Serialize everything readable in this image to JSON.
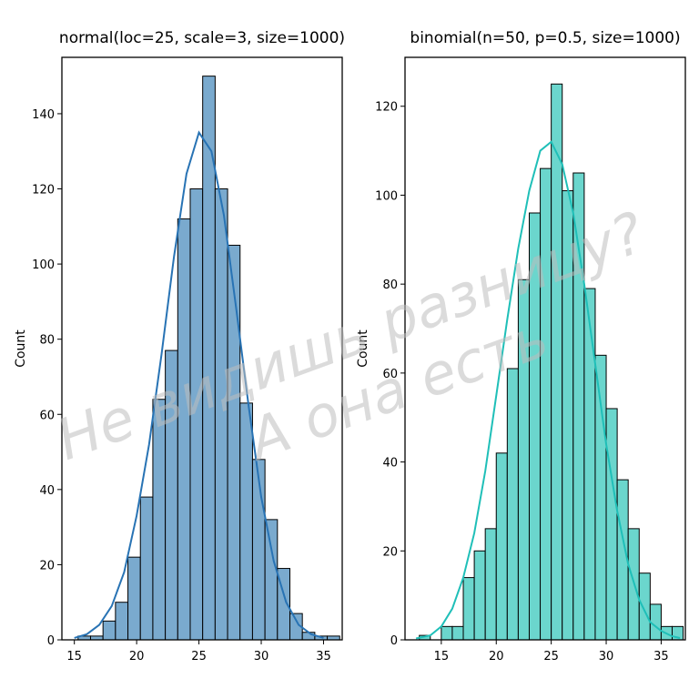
{
  "chart_data": [
    {
      "type": "bar",
      "title": "normal(loc=25, scale=3, size=1000)",
      "xlabel": "",
      "ylabel": "Count",
      "xlim": [
        14,
        36.5
      ],
      "ylim": [
        0,
        155
      ],
      "xticks": [
        15,
        20,
        25,
        30,
        35
      ],
      "yticks": [
        0,
        20,
        40,
        60,
        80,
        100,
        120,
        140
      ],
      "bin_edges": [
        15.3,
        16.3,
        17.3,
        18.3,
        19.3,
        20.3,
        21.3,
        22.3,
        23.3,
        24.3,
        25.3,
        26.3,
        27.3,
        28.3,
        29.3,
        30.3,
        31.3,
        32.3,
        33.3,
        34.3,
        35.3,
        36.3
      ],
      "values": [
        1,
        1,
        5,
        10,
        22,
        38,
        64,
        77,
        112,
        120,
        150,
        120,
        105,
        63,
        48,
        32,
        19,
        7,
        2,
        1,
        1
      ],
      "kde": [
        [
          15,
          0.5
        ],
        [
          16,
          1.5
        ],
        [
          17,
          4
        ],
        [
          18,
          9
        ],
        [
          19,
          18
        ],
        [
          20,
          33
        ],
        [
          21,
          52
        ],
        [
          22,
          76
        ],
        [
          23,
          102
        ],
        [
          24,
          124
        ],
        [
          25,
          135
        ],
        [
          26,
          130
        ],
        [
          27,
          113
        ],
        [
          28,
          88
        ],
        [
          29,
          62
        ],
        [
          30,
          38
        ],
        [
          31,
          21
        ],
        [
          32,
          10
        ],
        [
          33,
          4
        ],
        [
          34,
          1.5
        ],
        [
          35,
          0.5
        ]
      ],
      "grid": false,
      "colors": {
        "bar": "#7aaace",
        "edge": "#000000",
        "kde": "#2873b4"
      }
    },
    {
      "type": "bar",
      "title": "binomial(n=50, p=0.5, size=1000)",
      "xlabel": "",
      "ylabel": "Count",
      "xlim": [
        11.7,
        37.2
      ],
      "ylim": [
        0,
        131
      ],
      "xticks": [
        15,
        20,
        25,
        30,
        35
      ],
      "yticks": [
        0,
        20,
        40,
        60,
        80,
        100,
        120
      ],
      "bin_edges": [
        13,
        14,
        15,
        16,
        17,
        18,
        19,
        20,
        21,
        22,
        23,
        24,
        25,
        26,
        27,
        28,
        29,
        30,
        31,
        32,
        33,
        34,
        35,
        36,
        37
      ],
      "values": [
        1,
        0,
        3,
        3,
        14,
        20,
        25,
        42,
        61,
        81,
        96,
        106,
        125,
        101,
        105,
        79,
        64,
        52,
        36,
        25,
        15,
        8,
        3,
        3
      ],
      "kde": [
        [
          12.7,
          0.3
        ],
        [
          14,
          1
        ],
        [
          15,
          3
        ],
        [
          16,
          7
        ],
        [
          17,
          14
        ],
        [
          18,
          24
        ],
        [
          19,
          38
        ],
        [
          20,
          55
        ],
        [
          21,
          72
        ],
        [
          22,
          88
        ],
        [
          23,
          101
        ],
        [
          24,
          110
        ],
        [
          25,
          112
        ],
        [
          26,
          107
        ],
        [
          27,
          96
        ],
        [
          28,
          80
        ],
        [
          29,
          62
        ],
        [
          30,
          44
        ],
        [
          31,
          29
        ],
        [
          32,
          17
        ],
        [
          33,
          9
        ],
        [
          34,
          4
        ],
        [
          35,
          2
        ],
        [
          36,
          0.8
        ],
        [
          36.7,
          0.4
        ]
      ],
      "grid": false,
      "colors": {
        "bar": "#6bd6cd",
        "edge": "#000000",
        "kde": "#1fbfb8"
      }
    }
  ],
  "watermark": {
    "line1": "Не видишь разницу?",
    "line2": "А она есть"
  }
}
